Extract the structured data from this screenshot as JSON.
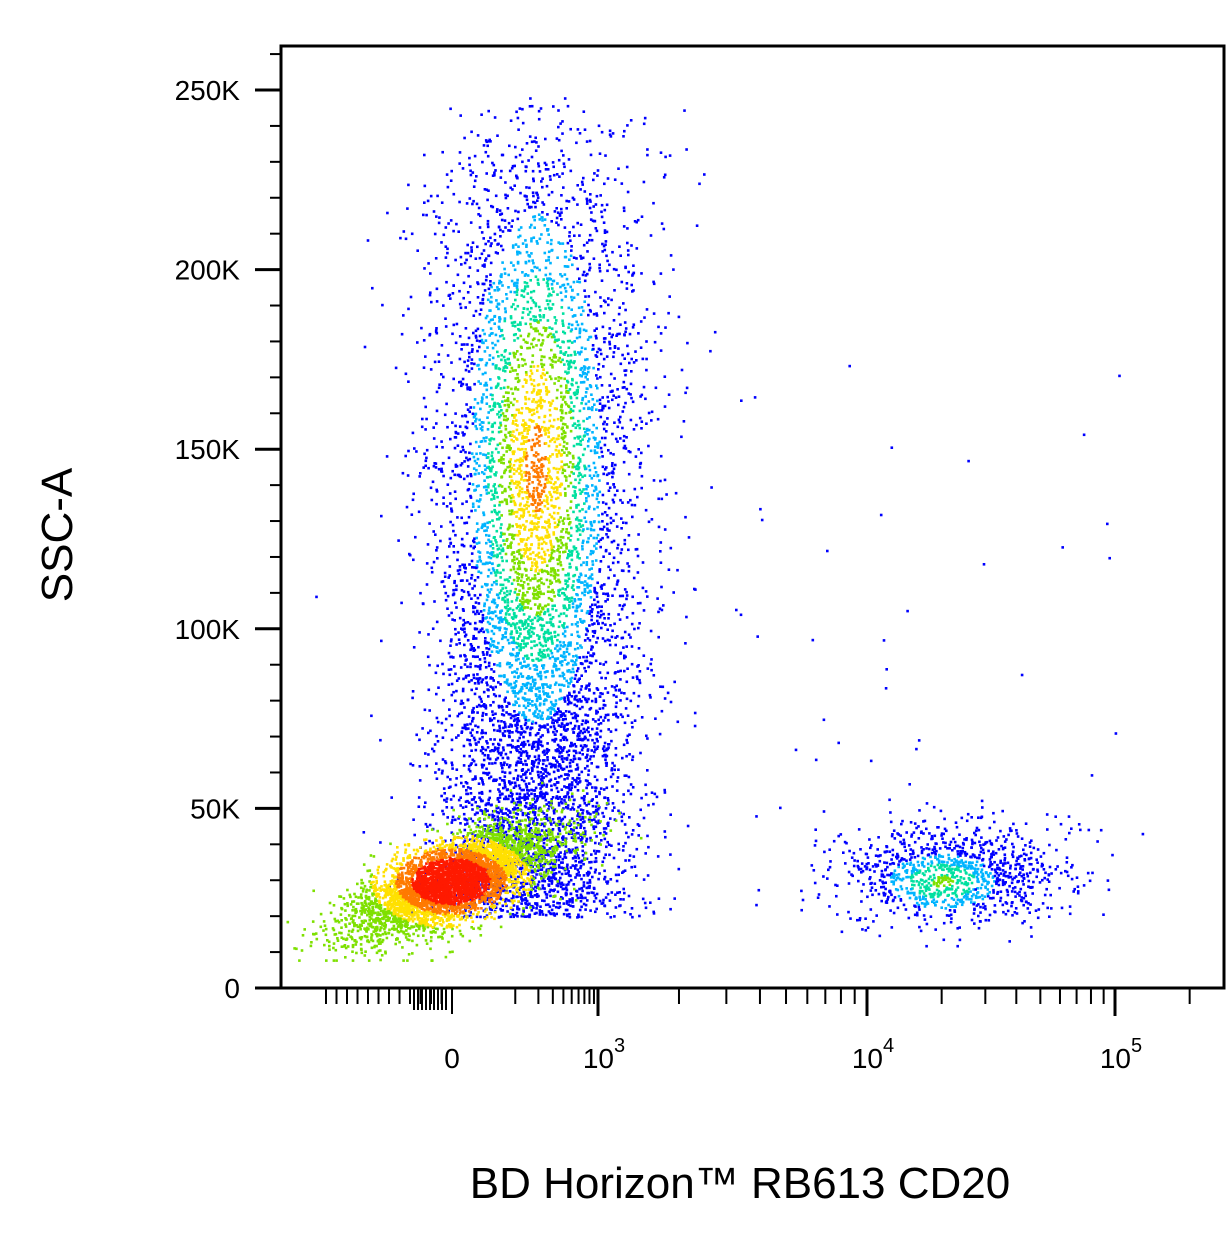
{
  "chart_data": {
    "type": "scatter",
    "subtype": "flow-cytometry-density-dot-plot",
    "xlabel": "BD Horizon™ RB613 CD20",
    "ylabel": "SSC-A",
    "x_scale": "biexponential",
    "y_scale": "linear",
    "xlim": [
      -300,
      150000
    ],
    "ylim": [
      0,
      262144
    ],
    "x_ticks": [
      {
        "value": 0,
        "label": "0"
      },
      {
        "value": 1000,
        "label": "10",
        "exponent": "3"
      },
      {
        "value": 10000,
        "label": "10",
        "exponent": "4"
      },
      {
        "value": 100000,
        "label": "10",
        "exponent": "5"
      }
    ],
    "y_ticks": [
      {
        "value": 0,
        "label": "0"
      },
      {
        "value": 50000,
        "label": "50K"
      },
      {
        "value": 100000,
        "label": "100K"
      },
      {
        "value": 150000,
        "label": "150K"
      },
      {
        "value": 200000,
        "label": "200K"
      },
      {
        "value": 250000,
        "label": "250K"
      }
    ],
    "grid": false,
    "legend": "none",
    "density_colormap": [
      "#0000ff",
      "#00b4ff",
      "#00e0a0",
      "#7ee000",
      "#ffe000",
      "#ff7a00",
      "#ff1a00"
    ],
    "populations": [
      {
        "x_center": 150,
        "x_spread": 280,
        "y_center": 140000,
        "y_spread": 55000,
        "y_range": [
          20000,
          250000
        ],
        "relative_density": "high",
        "peak_color": "#ffe000"
      },
      {
        "x_center": 80,
        "x_spread": 200,
        "y_center": 30000,
        "y_spread": 9000,
        "relative_density": "very high",
        "peak_color": "#ff1a00"
      },
      {
        "x_center": 22000,
        "x_spread_log": 0.25,
        "y_center": 32000,
        "y_spread": 8000,
        "relative_density": "low",
        "peak_color": "#00e0a0"
      }
    ]
  }
}
